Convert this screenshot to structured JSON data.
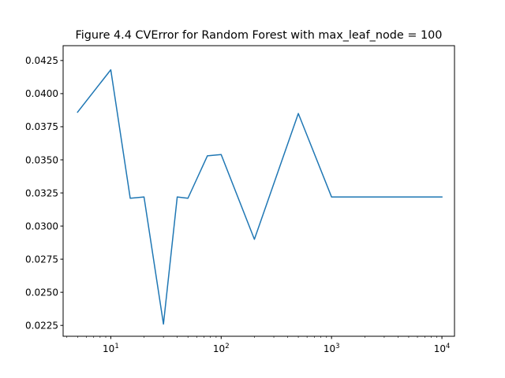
{
  "chart_data": {
    "type": "line",
    "title": "Figure 4.4 CVError for Random Forest with max_leaf_node = 100",
    "xlabel": "",
    "ylabel": "",
    "xscale": "log",
    "xlim": [
      3.7,
      13000
    ],
    "ylim": [
      0.02168,
      0.04362
    ],
    "grid": false,
    "legend": "none",
    "x_ticks": [
      {
        "value": 10,
        "base": "10",
        "exp": "1"
      },
      {
        "value": 100,
        "base": "10",
        "exp": "2"
      },
      {
        "value": 1000,
        "base": "10",
        "exp": "3"
      },
      {
        "value": 10000,
        "base": "10",
        "exp": "4"
      }
    ],
    "y_ticks": [
      {
        "value": 0.0225,
        "label": "0.0225"
      },
      {
        "value": 0.025,
        "label": "0.0250"
      },
      {
        "value": 0.0275,
        "label": "0.0275"
      },
      {
        "value": 0.03,
        "label": "0.0300"
      },
      {
        "value": 0.0325,
        "label": "0.0325"
      },
      {
        "value": 0.035,
        "label": "0.0350"
      },
      {
        "value": 0.0375,
        "label": "0.0375"
      },
      {
        "value": 0.04,
        "label": "0.0400"
      },
      {
        "value": 0.0425,
        "label": "0.0425"
      }
    ],
    "series": [
      {
        "color": "#1f77b4",
        "x": [
          5,
          10,
          15,
          20,
          30,
          40,
          50,
          75,
          100,
          200,
          500,
          1000,
          10000
        ],
        "y": [
          0.0386,
          0.0418,
          0.0321,
          0.0322,
          0.0226,
          0.0322,
          0.0321,
          0.0353,
          0.0354,
          0.029,
          0.0385,
          0.0322,
          0.0322
        ]
      }
    ]
  }
}
